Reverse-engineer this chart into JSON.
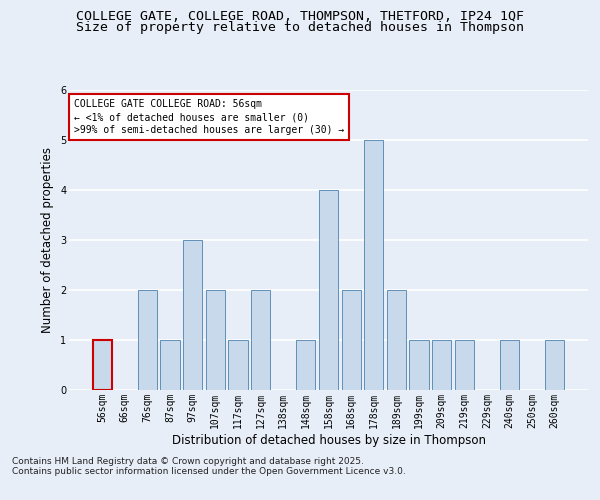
{
  "title_line1": "COLLEGE GATE, COLLEGE ROAD, THOMPSON, THETFORD, IP24 1QF",
  "title_line2": "Size of property relative to detached houses in Thompson",
  "xlabel": "Distribution of detached houses by size in Thompson",
  "ylabel": "Number of detached properties",
  "categories": [
    "56sqm",
    "66sqm",
    "76sqm",
    "87sqm",
    "97sqm",
    "107sqm",
    "117sqm",
    "127sqm",
    "138sqm",
    "148sqm",
    "158sqm",
    "168sqm",
    "178sqm",
    "189sqm",
    "199sqm",
    "209sqm",
    "219sqm",
    "229sqm",
    "240sqm",
    "250sqm",
    "260sqm"
  ],
  "values": [
    1,
    0,
    2,
    1,
    3,
    2,
    1,
    2,
    0,
    1,
    4,
    2,
    5,
    2,
    1,
    1,
    1,
    0,
    1,
    0,
    1
  ],
  "bar_color": "#c9d9ec",
  "bar_edge_color": "#6090b8",
  "highlight_index": 0,
  "highlight_edge_color": "#cc0000",
  "annotation_box_text": "COLLEGE GATE COLLEGE ROAD: 56sqm\n← <1% of detached houses are smaller (0)\n>99% of semi-detached houses are larger (30) →",
  "annotation_box_color": "#ffffff",
  "annotation_box_edge_color": "#cc0000",
  "ylim": [
    0,
    6
  ],
  "yticks": [
    0,
    1,
    2,
    3,
    4,
    5,
    6
  ],
  "footer_line1": "Contains HM Land Registry data © Crown copyright and database right 2025.",
  "footer_line2": "Contains public sector information licensed under the Open Government Licence v3.0.",
  "background_color": "#e8eef8",
  "plot_bg_color": "#e8eef8",
  "grid_color": "#ffffff",
  "title_fontsize": 9.5,
  "subtitle_fontsize": 9.5,
  "axis_label_fontsize": 8.5,
  "tick_fontsize": 7,
  "annotation_fontsize": 7,
  "footer_fontsize": 6.5
}
